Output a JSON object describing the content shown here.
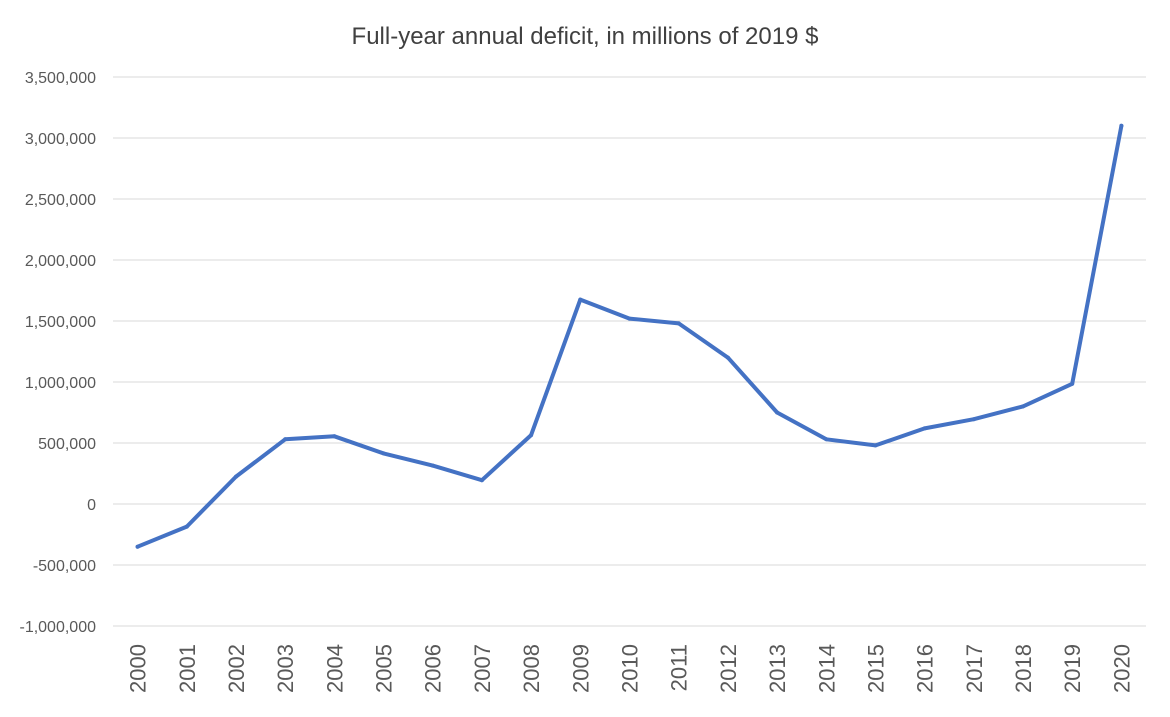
{
  "chart_data": {
    "type": "line",
    "title": "Full-year annual deficit, in millions of 2019 $",
    "xlabel": "",
    "ylabel": "",
    "categories": [
      "2000",
      "2001",
      "2002",
      "2003",
      "2004",
      "2005",
      "2006",
      "2007",
      "2008",
      "2009",
      "2010",
      "2011",
      "2012",
      "2013",
      "2014",
      "2015",
      "2016",
      "2017",
      "2018",
      "2019",
      "2020"
    ],
    "series": [
      {
        "values": [
          -350000,
          -185000,
          225000,
          530000,
          555000,
          415000,
          315000,
          195000,
          565000,
          1675000,
          1520000,
          1480000,
          1200000,
          750000,
          530000,
          480000,
          620000,
          695000,
          800000,
          985000,
          3100000
        ]
      }
    ],
    "ylim": [
      -1000000,
      3500000
    ],
    "yticks": [
      3500000,
      3000000,
      2500000,
      2000000,
      1500000,
      1000000,
      500000,
      0,
      -500000,
      -1000000
    ],
    "ytick_labels": [
      "3,500,000",
      "3,000,000",
      "2,500,000",
      "2,000,000",
      "1,500,000",
      "1,000,000",
      "500,000",
      "0",
      "-500,000",
      "-1,000,000"
    ],
    "grid": true,
    "legend": "none",
    "colors": {
      "series": "#4472c4",
      "grid": "#d9d9d9",
      "text": "#595959"
    }
  }
}
